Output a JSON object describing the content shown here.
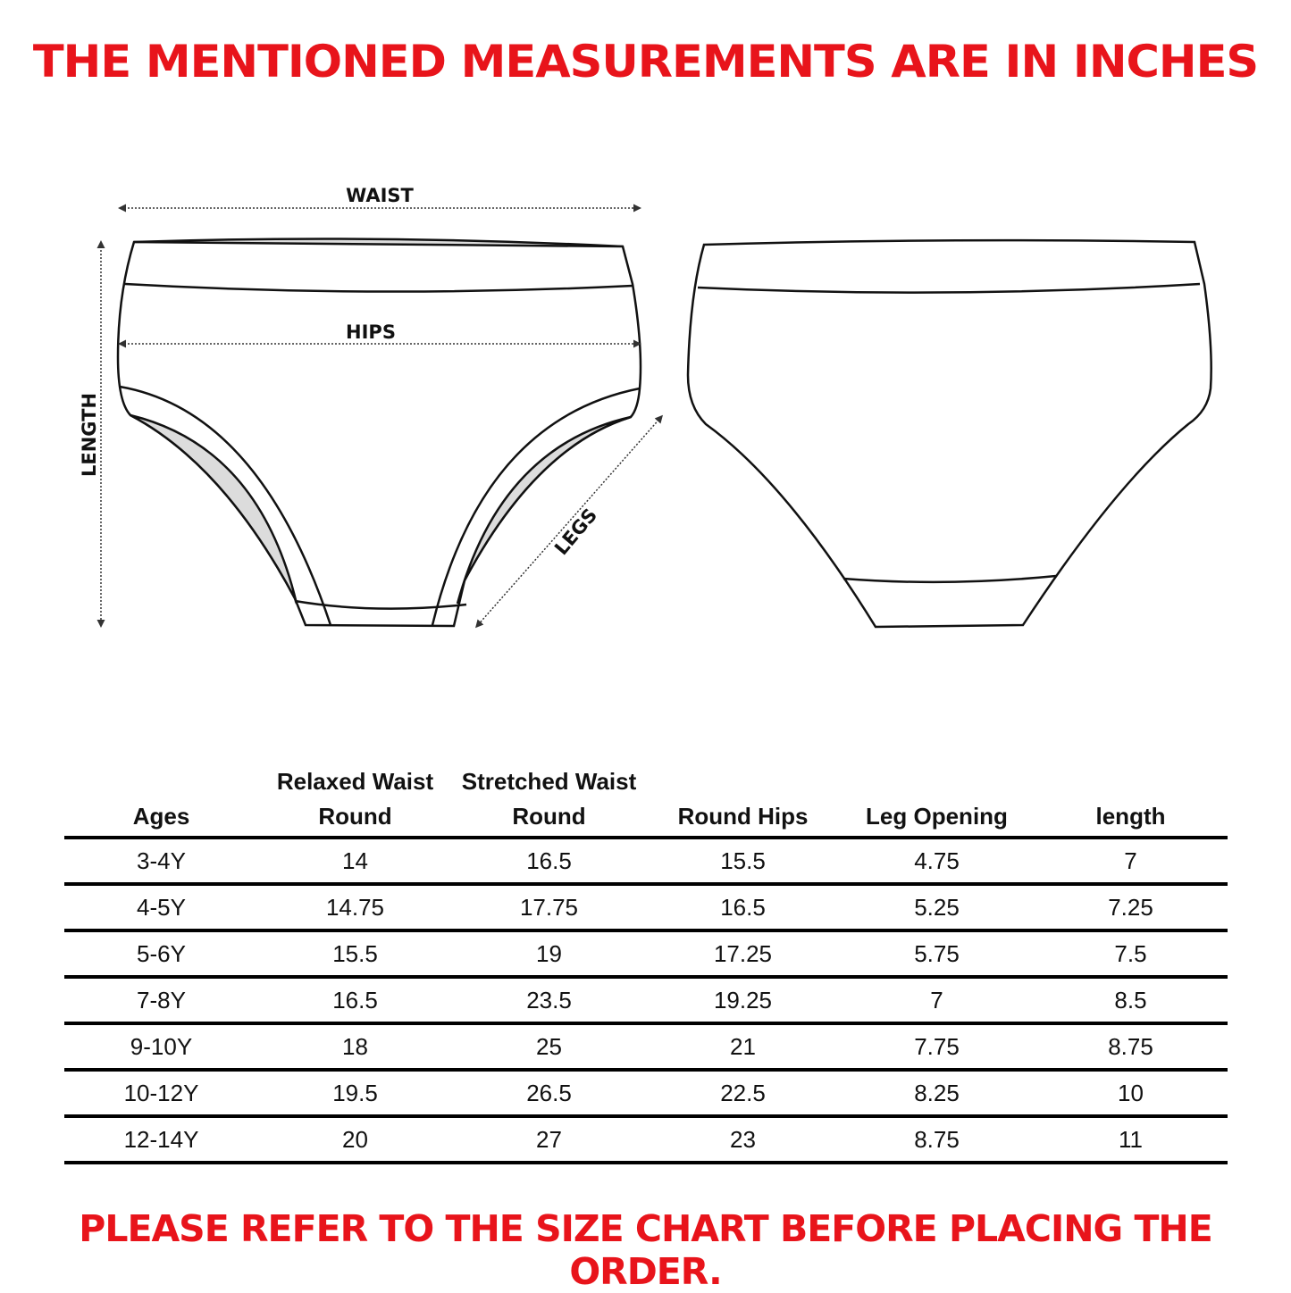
{
  "header": {
    "title": "THE MENTIONED MEASUREMENTS ARE IN INCHES",
    "title_color": "#e8141b"
  },
  "diagram": {
    "labels": {
      "waist": "WAIST",
      "hips": "HIPS",
      "length": "LENGTH",
      "legs": "LEGS"
    },
    "fill_color": "#dcdcdc"
  },
  "table": {
    "columns": [
      "Ages",
      "Relaxed Waist Round",
      "Stretched  Waist Round",
      "Round Hips",
      "Leg Opening",
      "length"
    ],
    "rows": [
      [
        "3-4Y",
        "14",
        "16.5",
        "15.5",
        "4.75",
        "7"
      ],
      [
        "4-5Y",
        "14.75",
        "17.75",
        "16.5",
        "5.25",
        "7.25"
      ],
      [
        "5-6Y",
        "15.5",
        "19",
        "17.25",
        "5.75",
        "7.5"
      ],
      [
        "7-8Y",
        "16.5",
        "23.5",
        "19.25",
        "7",
        "8.5"
      ],
      [
        "9-10Y",
        "18",
        "25",
        "21",
        "7.75",
        "8.75"
      ],
      [
        "10-12Y",
        "19.5",
        "26.5",
        "22.5",
        "8.25",
        "10"
      ],
      [
        "12-14Y",
        "20",
        "27",
        "23",
        "8.75",
        "11"
      ]
    ]
  },
  "footer": {
    "note": "PLEASE REFER TO THE SIZE CHART BEFORE PLACING THE ORDER."
  }
}
